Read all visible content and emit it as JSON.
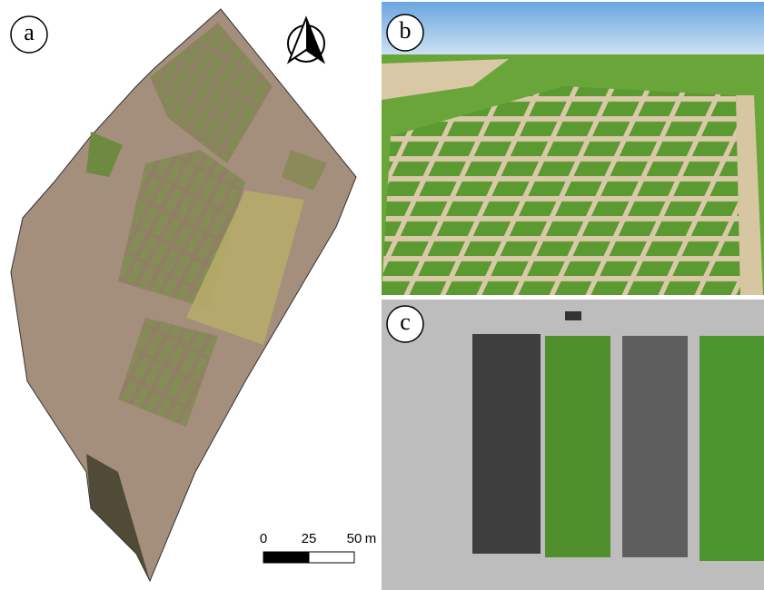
{
  "panels": [
    {
      "label": "a"
    },
    {
      "label": "b"
    },
    {
      "label": "c"
    }
  ],
  "scale_bar": {
    "ticks": [
      0,
      25,
      50
    ],
    "unit": "m"
  }
}
